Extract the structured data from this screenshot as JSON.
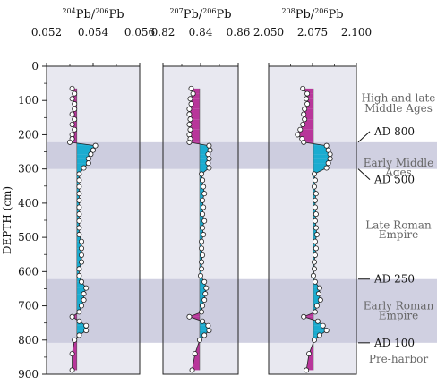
{
  "chart_data": [
    {
      "type": "line",
      "title_html": [
        "204",
        "Pb/",
        "206",
        "Pb"
      ],
      "ylabel": "DEPTH (cm)",
      "ylim": [
        900,
        0
      ],
      "yticks": [
        0,
        100,
        200,
        300,
        400,
        500,
        600,
        700,
        800,
        900
      ],
      "xlim": [
        0.052,
        0.056
      ],
      "xticks": [
        "0.052",
        "0.054",
        "0.056"
      ],
      "baseline": 0.0533,
      "points": [
        [
          0.0531,
          65
        ],
        [
          0.0532,
          80
        ],
        [
          0.0531,
          95
        ],
        [
          0.0532,
          110
        ],
        [
          0.0532,
          125
        ],
        [
          0.0531,
          140
        ],
        [
          0.0532,
          155
        ],
        [
          0.0531,
          170
        ],
        [
          0.0532,
          185
        ],
        [
          0.0531,
          200
        ],
        [
          0.0531,
          212
        ],
        [
          0.053,
          222
        ],
        [
          0.0541,
          232
        ],
        [
          0.054,
          245
        ],
        [
          0.0539,
          257
        ],
        [
          0.0538,
          270
        ],
        [
          0.0538,
          283
        ],
        [
          0.0536,
          297
        ],
        [
          0.0534,
          315
        ],
        [
          0.0534,
          333
        ],
        [
          0.0534,
          352
        ],
        [
          0.0534,
          372
        ],
        [
          0.0534,
          392
        ],
        [
          0.0534,
          412
        ],
        [
          0.0534,
          432
        ],
        [
          0.0534,
          452
        ],
        [
          0.0534,
          472
        ],
        [
          0.0534,
          492
        ],
        [
          0.0535,
          512
        ],
        [
          0.0535,
          532
        ],
        [
          0.0535,
          552
        ],
        [
          0.0535,
          572
        ],
        [
          0.0534,
          592
        ],
        [
          0.0534,
          612
        ],
        [
          0.0535,
          630
        ],
        [
          0.0537,
          648
        ],
        [
          0.0536,
          665
        ],
        [
          0.0536,
          683
        ],
        [
          0.0535,
          700
        ],
        [
          0.0534,
          718
        ],
        [
          0.0531,
          732
        ],
        [
          0.0534,
          745
        ],
        [
          0.0537,
          758
        ],
        [
          0.0537,
          772
        ],
        [
          0.0534,
          786
        ],
        [
          0.0532,
          800
        ],
        [
          0.0531,
          840
        ],
        [
          0.0531,
          888
        ]
      ]
    },
    {
      "type": "line",
      "title_html": [
        "207",
        "Pb/",
        "206",
        "Pb"
      ],
      "ylim": [
        900,
        0
      ],
      "xlim": [
        0.82,
        0.86
      ],
      "xticks": [
        "0.82",
        "0.84",
        "0.86"
      ],
      "baseline": 0.8395,
      "points": [
        [
          0.835,
          65
        ],
        [
          0.836,
          80
        ],
        [
          0.8345,
          95
        ],
        [
          0.835,
          110
        ],
        [
          0.834,
          125
        ],
        [
          0.834,
          140
        ],
        [
          0.8345,
          155
        ],
        [
          0.834,
          170
        ],
        [
          0.8345,
          185
        ],
        [
          0.834,
          200
        ],
        [
          0.8345,
          212
        ],
        [
          0.834,
          222
        ],
        [
          0.8445,
          232
        ],
        [
          0.845,
          245
        ],
        [
          0.844,
          257
        ],
        [
          0.8445,
          270
        ],
        [
          0.844,
          283
        ],
        [
          0.8445,
          297
        ],
        [
          0.8405,
          315
        ],
        [
          0.841,
          333
        ],
        [
          0.8415,
          352
        ],
        [
          0.842,
          372
        ],
        [
          0.841,
          392
        ],
        [
          0.8415,
          412
        ],
        [
          0.841,
          432
        ],
        [
          0.842,
          452
        ],
        [
          0.841,
          472
        ],
        [
          0.8415,
          492
        ],
        [
          0.8405,
          512
        ],
        [
          0.8405,
          532
        ],
        [
          0.841,
          552
        ],
        [
          0.8405,
          572
        ],
        [
          0.8405,
          592
        ],
        [
          0.84,
          612
        ],
        [
          0.842,
          630
        ],
        [
          0.843,
          648
        ],
        [
          0.8425,
          665
        ],
        [
          0.842,
          683
        ],
        [
          0.841,
          700
        ],
        [
          0.8405,
          718
        ],
        [
          0.834,
          732
        ],
        [
          0.841,
          745
        ],
        [
          0.844,
          758
        ],
        [
          0.8445,
          772
        ],
        [
          0.842,
          786
        ],
        [
          0.8395,
          800
        ],
        [
          0.837,
          840
        ],
        [
          0.8355,
          888
        ]
      ]
    },
    {
      "type": "line",
      "title_html": [
        "208",
        "Pb/",
        "206",
        "Pb"
      ],
      "ylim": [
        900,
        0
      ],
      "xlim": [
        2.05,
        2.1
      ],
      "xticks": [
        "2.050",
        "2.075",
        "2.100"
      ],
      "baseline": 2.0755,
      "points": [
        [
          2.0695,
          65
        ],
        [
          2.072,
          80
        ],
        [
          2.0715,
          95
        ],
        [
          2.072,
          110
        ],
        [
          2.0705,
          125
        ],
        [
          2.07,
          140
        ],
        [
          2.0705,
          155
        ],
        [
          2.0695,
          170
        ],
        [
          2.068,
          185
        ],
        [
          2.0665,
          200
        ],
        [
          2.069,
          212
        ],
        [
          2.07,
          222
        ],
        [
          2.083,
          232
        ],
        [
          2.084,
          245
        ],
        [
          2.085,
          257
        ],
        [
          2.085,
          270
        ],
        [
          2.084,
          283
        ],
        [
          2.083,
          297
        ],
        [
          2.076,
          315
        ],
        [
          2.0765,
          333
        ],
        [
          2.076,
          352
        ],
        [
          2.077,
          372
        ],
        [
          2.0765,
          392
        ],
        [
          2.0765,
          412
        ],
        [
          2.077,
          432
        ],
        [
          2.0765,
          452
        ],
        [
          2.077,
          472
        ],
        [
          2.0775,
          492
        ],
        [
          2.0765,
          512
        ],
        [
          2.077,
          532
        ],
        [
          2.0765,
          552
        ],
        [
          2.076,
          572
        ],
        [
          2.076,
          592
        ],
        [
          2.0755,
          612
        ],
        [
          2.0765,
          630
        ],
        [
          2.079,
          648
        ],
        [
          2.0785,
          665
        ],
        [
          2.0795,
          683
        ],
        [
          2.0775,
          700
        ],
        [
          2.0765,
          718
        ],
        [
          2.07,
          732
        ],
        [
          2.078,
          745
        ],
        [
          2.081,
          758
        ],
        [
          2.083,
          772
        ],
        [
          2.079,
          786
        ],
        [
          2.076,
          800
        ],
        [
          2.073,
          840
        ],
        [
          2.0715,
          888
        ]
      ]
    }
  ],
  "bands": [
    [
      222,
      300
    ],
    [
      622,
      808
    ]
  ],
  "right_labels": {
    "periods": [
      {
        "lines": [
          "High and late",
          "Middle Ages"
        ],
        "depth": [
          93,
          123
        ]
      },
      {
        "lines": [
          "Early Middle",
          "Ages"
        ],
        "depth": [
          282,
          310
        ]
      },
      {
        "lines": [
          "Late Roman",
          "Empire"
        ],
        "depth": [
          464,
          492
        ]
      },
      {
        "lines": [
          "Early Roman",
          "Empire"
        ],
        "depth": [
          700,
          728
        ]
      },
      {
        "lines": [
          "Pre-harbor"
        ],
        "depth": [
          856
        ]
      }
    ],
    "dates": [
      {
        "label": "AD 800",
        "depth": 222
      },
      {
        "label": "AD 500",
        "depth": 300
      },
      {
        "label": "AD 250",
        "depth": 622
      },
      {
        "label": "AD 100",
        "depth": 808
      }
    ]
  },
  "colors": {
    "panel_bg": "#e8e8f0",
    "band": "#c8c8dc",
    "magenta": "#b8369a",
    "cyan": "#1aacd0",
    "period_text": "#666666",
    "date_text": "#111111"
  }
}
